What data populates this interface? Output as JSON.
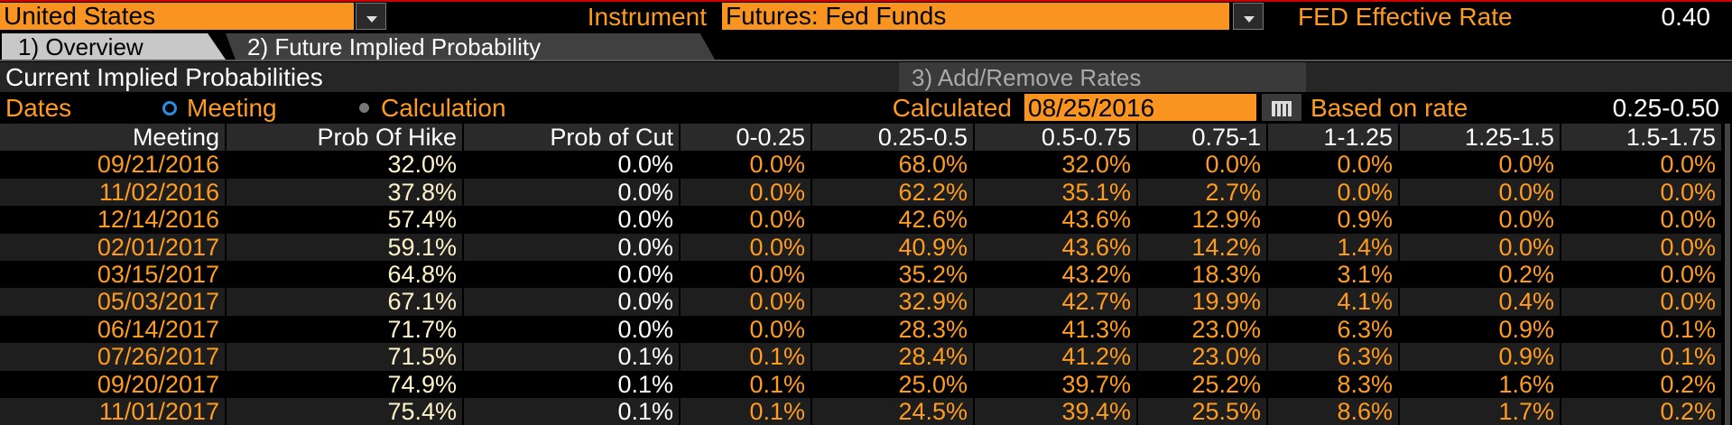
{
  "header": {
    "country": "United States",
    "instrument_label": "Instrument",
    "instrument": "Futures: Fed Funds",
    "rate_label": "FED Effective Rate",
    "rate_value": "0.40"
  },
  "tabs": [
    "1) Overview",
    "2) Future Implied Probability"
  ],
  "section": {
    "title": "Current Implied Probabilities",
    "button": "3) Add/Remove Rates"
  },
  "controls": {
    "dates_label": "Dates",
    "options": [
      "Meeting",
      "Calculation"
    ],
    "calculated_label": "Calculated",
    "calculated_date": "08/25/2016",
    "based_label": "Based on rate",
    "based_value": "0.25-0.50"
  },
  "table": {
    "columns": [
      "Meeting",
      "Prob Of Hike",
      "Prob of Cut",
      "0-0.25",
      "0.25-0.5",
      "0.5-0.75",
      "0.75-1",
      "1-1.25",
      "1.25-1.5",
      "1.5-1.75"
    ],
    "rows": [
      [
        "09/21/2016",
        "32.0%",
        "0.0%",
        "0.0%",
        "68.0%",
        "32.0%",
        "0.0%",
        "0.0%",
        "0.0%",
        "0.0%"
      ],
      [
        "11/02/2016",
        "37.8%",
        "0.0%",
        "0.0%",
        "62.2%",
        "35.1%",
        "2.7%",
        "0.0%",
        "0.0%",
        "0.0%"
      ],
      [
        "12/14/2016",
        "57.4%",
        "0.0%",
        "0.0%",
        "42.6%",
        "43.6%",
        "12.9%",
        "0.9%",
        "0.0%",
        "0.0%"
      ],
      [
        "02/01/2017",
        "59.1%",
        "0.0%",
        "0.0%",
        "40.9%",
        "43.6%",
        "14.2%",
        "1.4%",
        "0.0%",
        "0.0%"
      ],
      [
        "03/15/2017",
        "64.8%",
        "0.0%",
        "0.0%",
        "35.2%",
        "43.2%",
        "18.3%",
        "3.1%",
        "0.2%",
        "0.0%"
      ],
      [
        "05/03/2017",
        "67.1%",
        "0.0%",
        "0.0%",
        "32.9%",
        "42.7%",
        "19.9%",
        "4.1%",
        "0.4%",
        "0.0%"
      ],
      [
        "06/14/2017",
        "71.7%",
        "0.0%",
        "0.0%",
        "28.3%",
        "41.3%",
        "23.0%",
        "6.3%",
        "0.9%",
        "0.1%"
      ],
      [
        "07/26/2017",
        "71.5%",
        "0.1%",
        "0.1%",
        "28.4%",
        "41.2%",
        "23.0%",
        "6.3%",
        "0.9%",
        "0.1%"
      ],
      [
        "09/20/2017",
        "74.9%",
        "0.1%",
        "0.1%",
        "25.0%",
        "39.7%",
        "25.2%",
        "8.3%",
        "1.6%",
        "0.2%"
      ],
      [
        "11/01/2017",
        "75.4%",
        "0.1%",
        "0.1%",
        "24.5%",
        "39.4%",
        "25.5%",
        "8.6%",
        "1.7%",
        "0.2%"
      ]
    ]
  }
}
